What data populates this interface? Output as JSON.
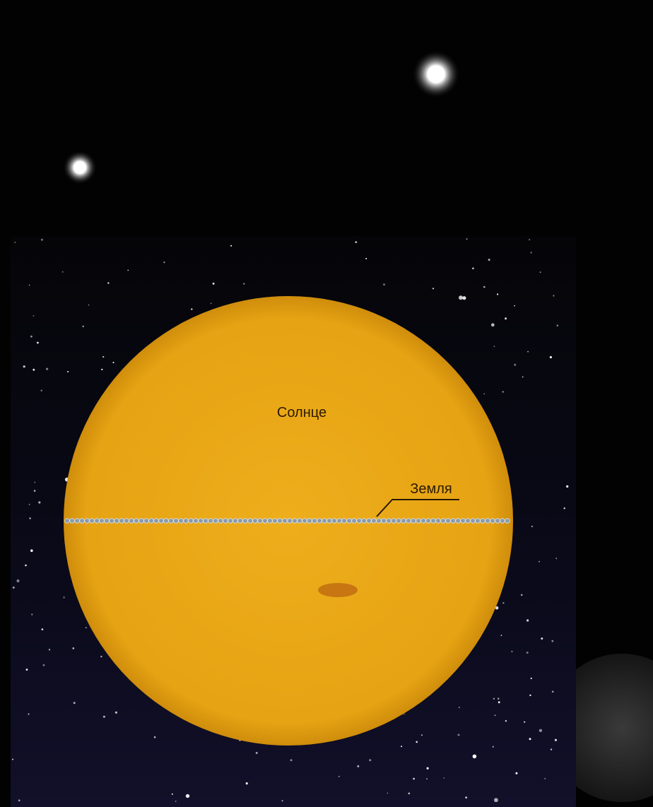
{
  "labels": {
    "sun": "Солнце",
    "earth": "Земля"
  }
}
